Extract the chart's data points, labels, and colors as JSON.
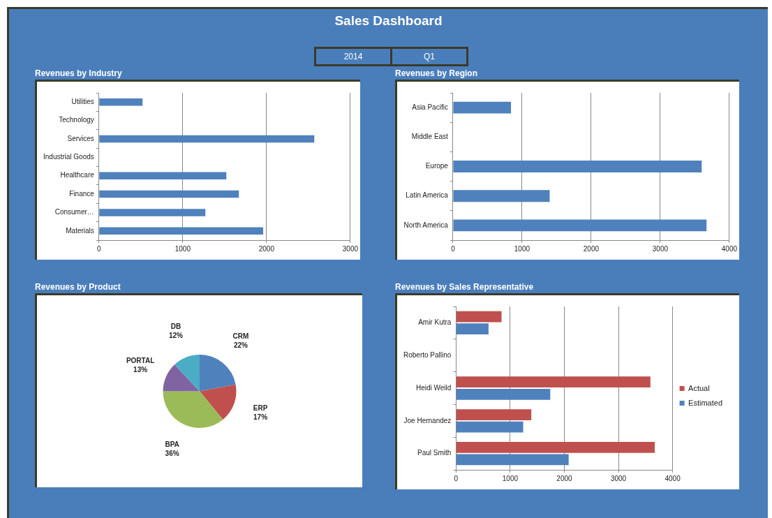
{
  "chart_data": [
    {
      "type": "other",
      "title": "Sales Dashboard",
      "annotations": [
        "2014",
        "Q1"
      ]
    },
    {
      "type": "bar",
      "orientation": "horizontal",
      "title": "Revenues by Industry",
      "categories": [
        "Utilities",
        "Technology",
        "Services",
        "Industrial Goods",
        "Healthcare",
        "Finance",
        "Consumer…",
        "Materials"
      ],
      "values": [
        520,
        null,
        2570,
        null,
        1520,
        1670,
        1270,
        1960
      ],
      "color": "#4f81bd",
      "xlim": [
        0,
        3000
      ],
      "xticks": [
        0,
        1000,
        2000,
        3000
      ],
      "grid": "x",
      "legend": false
    },
    {
      "type": "bar",
      "orientation": "horizontal",
      "title": "Revenues by Region",
      "categories": [
        "Asia Pacific",
        "Middle East",
        "Europe",
        "Latin America",
        "North America"
      ],
      "values": [
        840,
        null,
        3600,
        1400,
        3670
      ],
      "color": "#4f81bd",
      "xlim": [
        0,
        4000
      ],
      "xticks": [
        0,
        1000,
        2000,
        3000,
        4000
      ],
      "grid": "x",
      "legend": false
    },
    {
      "type": "pie",
      "title": "Revenues by Product",
      "categories": [
        "CRM",
        "ERP",
        "BPA",
        "PORTAL",
        "DB"
      ],
      "values": [
        22,
        17,
        36,
        13,
        12
      ],
      "value_labels": [
        "22%",
        "17%",
        "36%",
        "13%",
        "12%"
      ],
      "colors": [
        "#4f81bd",
        "#c0504d",
        "#9bbb59",
        "#8064a2",
        "#4bacc6"
      ],
      "legend": false
    },
    {
      "type": "bar",
      "orientation": "horizontal",
      "title": "Revenues by Sales Representative",
      "categories": [
        "Amir Kutra",
        "Roberto Pallino",
        "Heidi Weild",
        "Joe Hernandez",
        "Paul Smith"
      ],
      "series": [
        {
          "name": "Actual",
          "color": "#c0504d",
          "values": [
            840,
            null,
            3590,
            1390,
            3670
          ]
        },
        {
          "name": "Estimated",
          "color": "#4f81bd",
          "values": [
            600,
            null,
            1740,
            1240,
            2080
          ]
        }
      ],
      "xlim": [
        0,
        4000
      ],
      "xticks": [
        0,
        1000,
        2000,
        3000,
        4000
      ],
      "grid": "x",
      "legend": "right"
    }
  ]
}
